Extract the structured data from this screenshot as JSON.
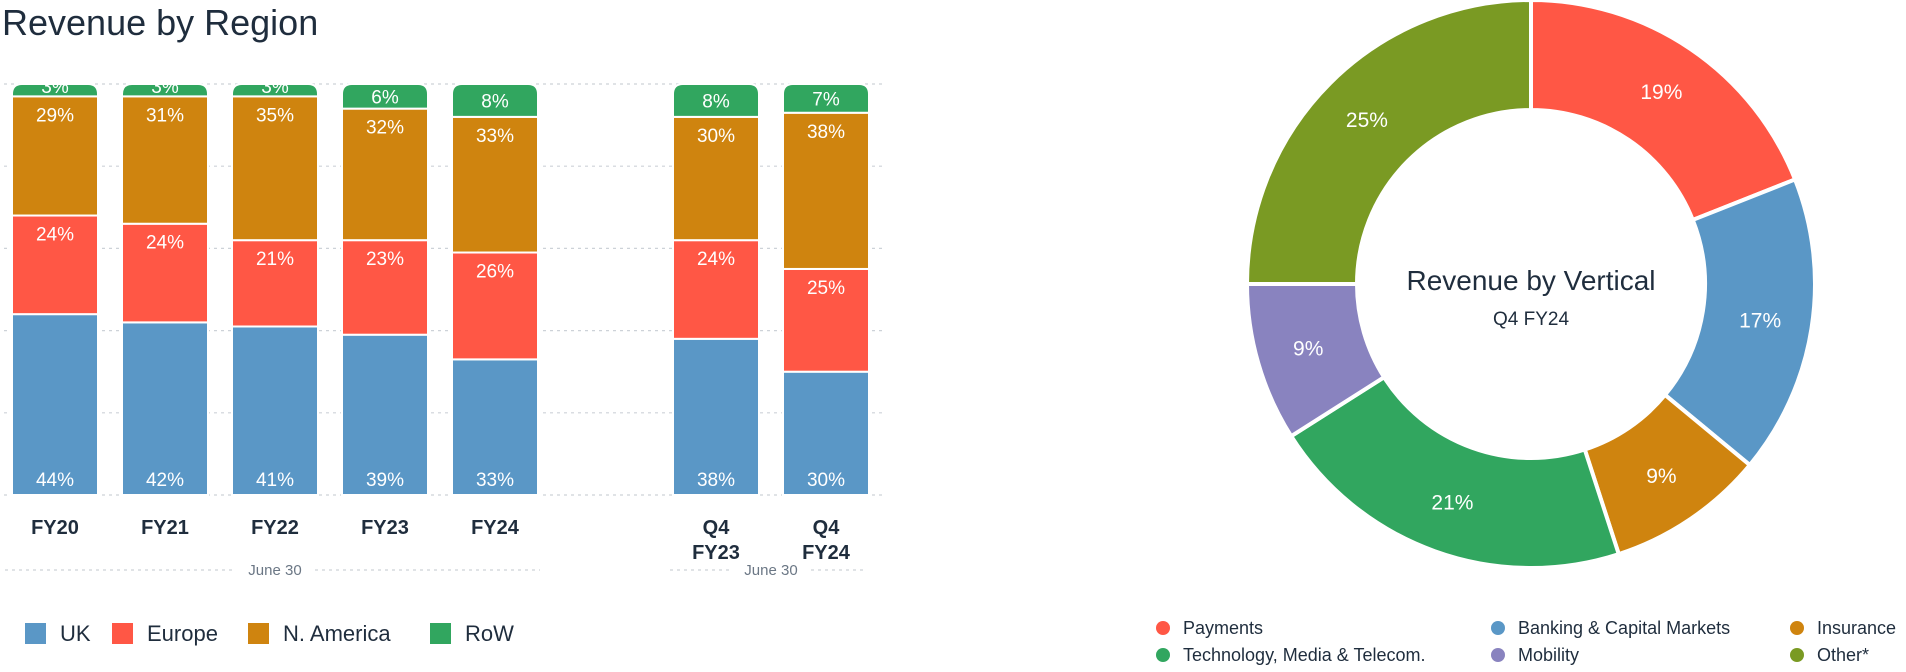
{
  "page": {
    "title": "Revenue by Region"
  },
  "chart_data": [
    {
      "type": "bar",
      "stacked": true,
      "title": "Revenue by Region",
      "unit": "%",
      "ylim": [
        0,
        100
      ],
      "grid": true,
      "legend_position": "bottom-left",
      "groups": [
        {
          "label": "June 30",
          "categories": [
            {
              "id": "FY20",
              "lines": [
                "FY20"
              ]
            },
            {
              "id": "FY21",
              "lines": [
                "FY21"
              ]
            },
            {
              "id": "FY22",
              "lines": [
                "FY22"
              ]
            },
            {
              "id": "FY23",
              "lines": [
                "FY23"
              ]
            },
            {
              "id": "FY24",
              "lines": [
                "FY24"
              ]
            }
          ]
        },
        {
          "label": "June 30",
          "categories": [
            {
              "id": "Q4 FY23",
              "lines": [
                "Q4",
                "FY23"
              ]
            },
            {
              "id": "Q4 FY24",
              "lines": [
                "Q4",
                "FY24"
              ]
            }
          ]
        }
      ],
      "series": [
        {
          "name": "UK",
          "color": "#5a97c6",
          "values": [
            44,
            42,
            41,
            39,
            33,
            38,
            30
          ]
        },
        {
          "name": "Europe",
          "color": "#ff5745",
          "values": [
            24,
            24,
            21,
            23,
            26,
            24,
            25
          ]
        },
        {
          "name": "N. America",
          "color": "#cf840f",
          "values": [
            29,
            31,
            35,
            32,
            33,
            30,
            38
          ]
        },
        {
          "name": "RoW",
          "color": "#31a65f",
          "values": [
            3,
            3,
            3,
            6,
            8,
            8,
            7
          ]
        }
      ]
    },
    {
      "type": "pie",
      "donut": true,
      "title": "Revenue by Vertical",
      "subtitle": "Q4 FY24",
      "unit": "%",
      "legend_position": "bottom",
      "slices": [
        {
          "name": "Payments",
          "value": 19,
          "color": "#ff5745"
        },
        {
          "name": "Banking & Capital Markets",
          "value": 17,
          "color": "#5a97c6"
        },
        {
          "name": "Insurance",
          "value": 9,
          "color": "#cf840f"
        },
        {
          "name": "Technology, Media & Telecom.",
          "value": 21,
          "color": "#31a65f"
        },
        {
          "name": "Mobility",
          "value": 9,
          "color": "#8983bf"
        },
        {
          "name": "Other*",
          "value": 25,
          "color": "#7a9a23"
        }
      ],
      "legend_order": [
        "Payments",
        "Banking & Capital Markets",
        "Insurance",
        "Technology, Media & Telecom.",
        "Mobility",
        "Other*"
      ]
    }
  ]
}
